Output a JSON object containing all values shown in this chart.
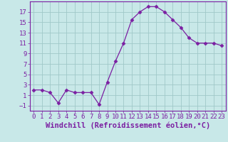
{
  "x": [
    0,
    1,
    2,
    3,
    4,
    5,
    6,
    7,
    8,
    9,
    10,
    11,
    12,
    13,
    14,
    15,
    16,
    17,
    18,
    19,
    20,
    21,
    22,
    23
  ],
  "y": [
    2.0,
    2.0,
    1.5,
    -0.5,
    2.0,
    1.5,
    1.5,
    1.5,
    -0.8,
    3.5,
    7.5,
    11.0,
    15.5,
    17.0,
    18.0,
    18.0,
    17.0,
    15.5,
    14.0,
    12.0,
    11.0,
    11.0,
    11.0,
    10.5
  ],
  "line_color": "#7b1fa2",
  "marker": "D",
  "marker_size": 2.5,
  "bg_color": "#c8e8e8",
  "grid_color": "#a0c8c8",
  "xlabel": "Windchill (Refroidissement éolien,°C)",
  "xlim": [
    -0.5,
    23.5
  ],
  "ylim": [
    -2.0,
    19.0
  ],
  "yticks": [
    -1,
    1,
    3,
    5,
    7,
    9,
    11,
    13,
    15,
    17
  ],
  "xticks": [
    0,
    1,
    2,
    3,
    4,
    5,
    6,
    7,
    8,
    9,
    10,
    11,
    12,
    13,
    14,
    15,
    16,
    17,
    18,
    19,
    20,
    21,
    22,
    23
  ],
  "label_color": "#7b1fa2",
  "tick_fontsize": 6.5,
  "xlabel_fontsize": 7.5
}
